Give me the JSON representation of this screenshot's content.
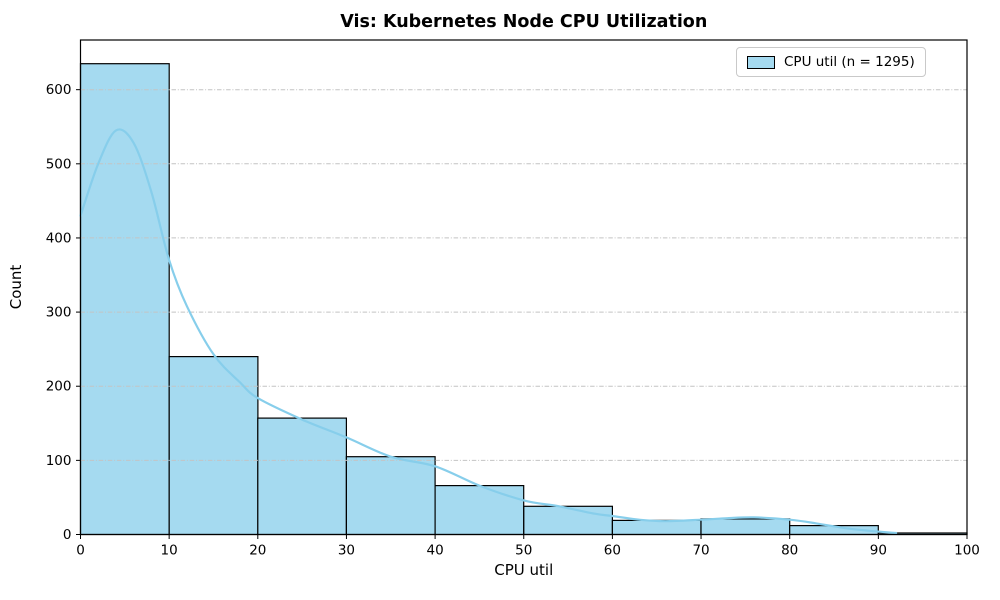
{
  "colors": {
    "bar_fill": "#a5daf0",
    "bar_edge": "#000000",
    "kde_line": "#87ceeb",
    "grid_line": "#c4c4c4",
    "spine": "#000000",
    "text": "#000000",
    "background": "#ffffff"
  },
  "legend": {
    "label": "CPU util (n = 1295)"
  },
  "chart_data": {
    "type": "bar",
    "subtype": "histogram-with-kde",
    "title": "Vis: Kubernetes Node CPU Utilization",
    "xlabel": "CPU util",
    "ylabel": "Count",
    "n": 1295,
    "bin_edges": [
      0,
      10,
      20,
      30,
      40,
      50,
      60,
      70,
      80,
      90,
      100
    ],
    "values": [
      635,
      240,
      157,
      105,
      66,
      38,
      19,
      21,
      12,
      2
    ],
    "xlim": [
      0,
      100
    ],
    "ylim": [
      0,
      667
    ],
    "xticks": [
      0,
      10,
      20,
      30,
      40,
      50,
      60,
      70,
      80,
      90,
      100
    ],
    "yticks": [
      0,
      100,
      200,
      300,
      400,
      500,
      600
    ],
    "grid": "horizontal-dashdot",
    "legend_position": "upper-right",
    "kde": {
      "x": [
        0,
        2,
        4,
        6,
        8,
        10,
        12,
        15,
        18,
        20,
        25,
        30,
        35,
        40,
        45,
        50,
        54,
        58,
        60,
        63,
        66,
        70,
        73,
        76,
        80,
        83,
        86,
        89,
        92
      ],
      "y": [
        430,
        500,
        545,
        528,
        462,
        370,
        308,
        243,
        205,
        184,
        155,
        131,
        105,
        92,
        66,
        46,
        38,
        28,
        25,
        20,
        18,
        20,
        22,
        23,
        20,
        15,
        9,
        5,
        2
      ]
    }
  }
}
